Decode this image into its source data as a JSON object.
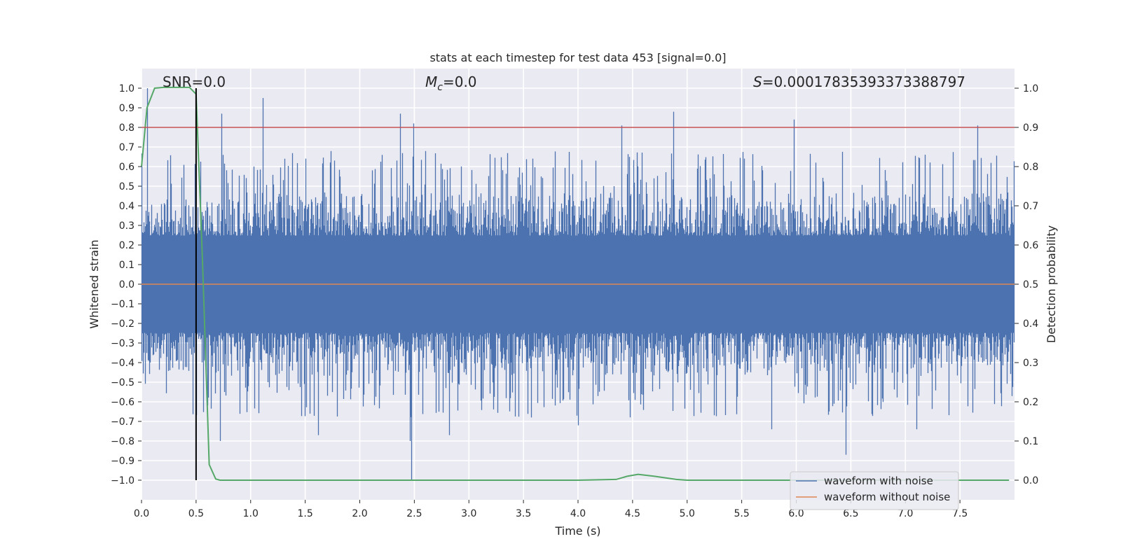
{
  "chart_data": {
    "type": "line",
    "title": "stats at each timestep for test data 453 [signal=0.0]",
    "xlabel": "Time (s)",
    "ylabel": "Whitened strain",
    "ylabel_right": "Detection probability",
    "xlim": [
      0,
      8
    ],
    "ylim": [
      -1.1,
      1.1
    ],
    "ylim_right": [
      -0.05,
      1.05
    ],
    "x_ticks": [
      0.0,
      0.5,
      1.0,
      1.5,
      2.0,
      2.5,
      3.0,
      3.5,
      4.0,
      4.5,
      5.0,
      5.5,
      6.0,
      6.5,
      7.0,
      7.5
    ],
    "x_tick_labels": [
      "0.0",
      "0.5",
      "1.0",
      "1.5",
      "2.0",
      "2.5",
      "3.0",
      "3.5",
      "4.0",
      "4.5",
      "5.0",
      "5.5",
      "6.0",
      "6.5",
      "7.0",
      "7.5"
    ],
    "y_ticks": [
      1.0,
      0.9,
      0.8,
      0.7,
      0.6,
      0.5,
      0.4,
      0.3,
      0.2,
      0.1,
      0.0,
      -0.1,
      -0.2,
      -0.3,
      -0.4,
      -0.5,
      -0.6,
      -0.7,
      -0.8,
      -0.9,
      -1.0
    ],
    "y_tick_labels": [
      "1.0",
      "0.9",
      "0.8",
      "0.7",
      "0.6",
      "0.5",
      "0.4",
      "0.3",
      "0.2",
      "0.1",
      "0.0",
      "−0.1",
      "−0.2",
      "−0.3",
      "−0.4",
      "−0.5",
      "−0.6",
      "−0.7",
      "−0.8",
      "−0.9",
      "−1.0"
    ],
    "y_ticks_right": [
      1.0,
      0.9,
      0.8,
      0.7,
      0.6,
      0.5,
      0.4,
      0.3,
      0.2,
      0.1,
      0.0
    ],
    "y_tick_labels_right": [
      "1.0",
      "0.9",
      "0.8",
      "0.7",
      "0.6",
      "0.5",
      "0.4",
      "0.3",
      "0.2",
      "0.1",
      "0.0"
    ],
    "annotations": {
      "snr": "SNR=0.0",
      "mc_symbol": "M",
      "mc_sub": "c",
      "mc_value": "=0.0",
      "s_symbol": "S",
      "s_value": "=0.00017835393373388797"
    },
    "threshold": {
      "value": 0.9,
      "axis": "right",
      "color": "#c44e52"
    },
    "marker_time": 0.5,
    "series": [
      {
        "name": "waveform with noise",
        "color": "#4c72b0",
        "kind": "noise",
        "sample_rate_hz": 2048,
        "typical_amplitude": 0.4,
        "spikes": [
          {
            "t": 0.05,
            "v": 1.0
          },
          {
            "t": 0.73,
            "v": 0.87
          },
          {
            "t": 1.11,
            "v": 0.95
          },
          {
            "t": 2.37,
            "v": 0.87
          },
          {
            "t": 2.49,
            "v": 0.82
          },
          {
            "t": 4.87,
            "v": 0.88
          },
          {
            "t": 4.4,
            "v": 0.81
          },
          {
            "t": 5.98,
            "v": 0.84
          },
          {
            "t": 7.66,
            "v": 0.81
          },
          {
            "t": 2.47,
            "v": -1.0
          },
          {
            "t": 2.46,
            "v": -0.8
          },
          {
            "t": 6.45,
            "v": -0.87
          },
          {
            "t": 1.62,
            "v": -0.77
          },
          {
            "t": 2.82,
            "v": -0.77
          },
          {
            "t": 5.77,
            "v": -0.74
          },
          {
            "t": 0.72,
            "v": -0.8
          },
          {
            "t": 7.1,
            "v": -0.74
          },
          {
            "t": 4.0,
            "v": -0.72
          }
        ]
      },
      {
        "name": "waveform without noise",
        "color": "#dd8452",
        "kind": "flat",
        "value": 0.0
      },
      {
        "name": "detection probability",
        "color": "#55a868",
        "axis": "right",
        "x": [
          0.0,
          0.05,
          0.12,
          0.2,
          0.3,
          0.44,
          0.5,
          0.56,
          0.62,
          0.68,
          0.72,
          1.0,
          2.0,
          3.0,
          4.0,
          4.35,
          4.45,
          4.55,
          4.7,
          4.9,
          5.0,
          6.0,
          7.0,
          7.95
        ],
        "values": [
          0.8,
          0.95,
          1.0,
          1.002,
          1.002,
          1.002,
          0.985,
          0.55,
          0.04,
          0.003,
          0.0,
          0.0,
          0.0,
          0.0,
          0.0,
          0.002,
          0.01,
          0.015,
          0.01,
          0.002,
          0.0,
          0.0,
          0.0,
          0.0
        ]
      }
    ],
    "legend": {
      "position": "lower-right",
      "entries": [
        {
          "label": "waveform with noise",
          "color": "#4c72b0"
        },
        {
          "label": "waveform without noise",
          "color": "#dd8452"
        }
      ]
    },
    "grid": true,
    "style": {
      "plot_bg": "#eaeaf2",
      "grid_color": "#ffffff",
      "text_color": "#262626"
    }
  }
}
